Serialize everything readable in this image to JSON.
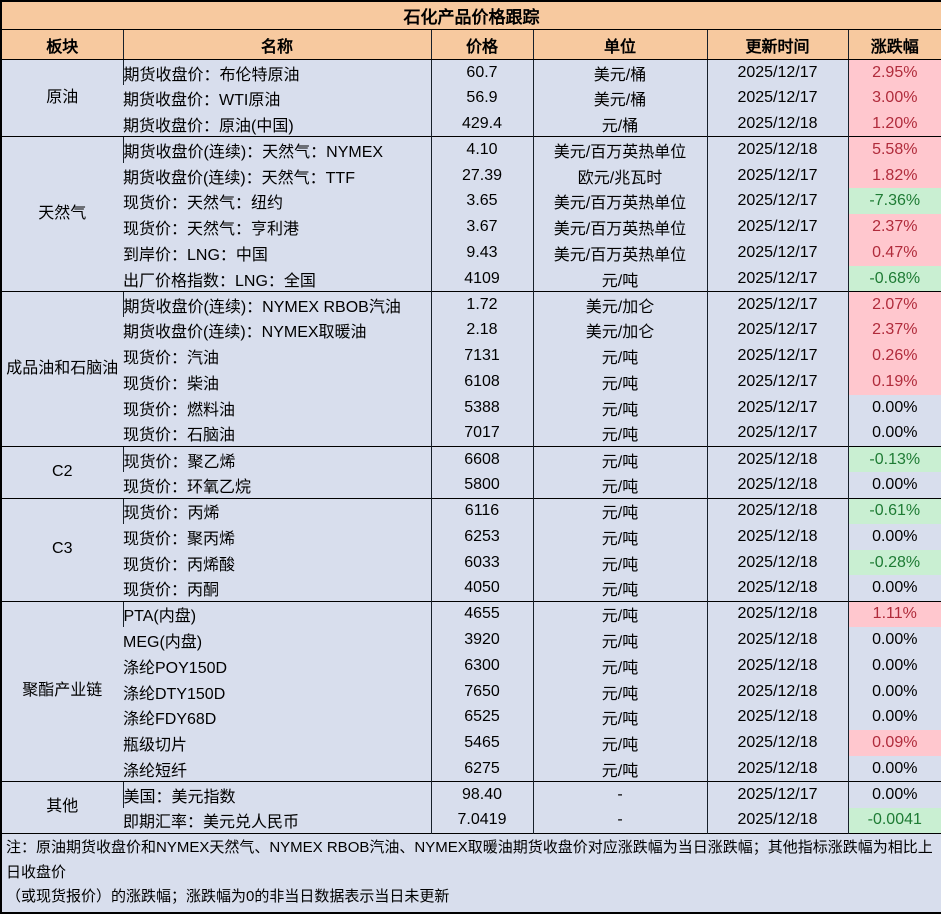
{
  "chart_data": {
    "type": "table",
    "title": "石化产品价格跟踪",
    "columns": [
      "板块",
      "名称",
      "价格",
      "单位",
      "更新时间",
      "涨跌幅"
    ],
    "sections": [
      {
        "sector": "原油",
        "rows": [
          {
            "name": "期货收盘价：布伦特原油",
            "price": "60.7",
            "unit": "美元/桶",
            "date": "2025/12/17",
            "change": "2.95%",
            "trend": "up"
          },
          {
            "name": "期货收盘价：WTI原油",
            "price": "56.9",
            "unit": "美元/桶",
            "date": "2025/12/17",
            "change": "3.00%",
            "trend": "up"
          },
          {
            "name": "期货收盘价：原油(中国)",
            "price": "429.4",
            "unit": "元/桶",
            "date": "2025/12/18",
            "change": "1.20%",
            "trend": "up"
          }
        ]
      },
      {
        "sector": "天然气",
        "rows": [
          {
            "name": "期货收盘价(连续)：天然气：NYMEX",
            "price": "4.10",
            "unit": "美元/百万英热单位",
            "date": "2025/12/18",
            "change": "5.58%",
            "trend": "up"
          },
          {
            "name": "期货收盘价(连续)：天然气：TTF",
            "price": "27.39",
            "unit": "欧元/兆瓦时",
            "date": "2025/12/17",
            "change": "1.82%",
            "trend": "up"
          },
          {
            "name": "现货价：天然气：纽约",
            "price": "3.65",
            "unit": "美元/百万英热单位",
            "date": "2025/12/17",
            "change": "-7.36%",
            "trend": "down"
          },
          {
            "name": "现货价：天然气：亨利港",
            "price": "3.67",
            "unit": "美元/百万英热单位",
            "date": "2025/12/17",
            "change": "2.37%",
            "trend": "up"
          },
          {
            "name": "到岸价：LNG：中国",
            "price": "9.43",
            "unit": "美元/百万英热单位",
            "date": "2025/12/17",
            "change": "0.47%",
            "trend": "up"
          },
          {
            "name": "出厂价格指数：LNG：全国",
            "price": "4109",
            "unit": "元/吨",
            "date": "2025/12/17",
            "change": "-0.68%",
            "trend": "down"
          }
        ]
      },
      {
        "sector": "成品油和石脑油",
        "rows": [
          {
            "name": "期货收盘价(连续)：NYMEX RBOB汽油",
            "price": "1.72",
            "unit": "美元/加仑",
            "date": "2025/12/17",
            "change": "2.07%",
            "trend": "up"
          },
          {
            "name": "期货收盘价(连续)：NYMEX取暖油",
            "price": "2.18",
            "unit": "美元/加仑",
            "date": "2025/12/17",
            "change": "2.37%",
            "trend": "up"
          },
          {
            "name": "现货价：汽油",
            "price": "7131",
            "unit": "元/吨",
            "date": "2025/12/17",
            "change": "0.26%",
            "trend": "up"
          },
          {
            "name": "现货价：柴油",
            "price": "6108",
            "unit": "元/吨",
            "date": "2025/12/17",
            "change": "0.19%",
            "trend": "up"
          },
          {
            "name": "现货价：燃料油",
            "price": "5388",
            "unit": "元/吨",
            "date": "2025/12/17",
            "change": "0.00%",
            "trend": "flat"
          },
          {
            "name": "现货价：石脑油",
            "price": "7017",
            "unit": "元/吨",
            "date": "2025/12/17",
            "change": "0.00%",
            "trend": "flat"
          }
        ]
      },
      {
        "sector": "C2",
        "rows": [
          {
            "name": "现货价：聚乙烯",
            "price": "6608",
            "unit": "元/吨",
            "date": "2025/12/18",
            "change": "-0.13%",
            "trend": "down"
          },
          {
            "name": "现货价：环氧乙烷",
            "price": "5800",
            "unit": "元/吨",
            "date": "2025/12/18",
            "change": "0.00%",
            "trend": "flat"
          }
        ]
      },
      {
        "sector": "C3",
        "rows": [
          {
            "name": "现货价：丙烯",
            "price": "6116",
            "unit": "元/吨",
            "date": "2025/12/18",
            "change": "-0.61%",
            "trend": "down"
          },
          {
            "name": "现货价：聚丙烯",
            "price": "6253",
            "unit": "元/吨",
            "date": "2025/12/18",
            "change": "0.00%",
            "trend": "flat"
          },
          {
            "name": "现货价：丙烯酸",
            "price": "6033",
            "unit": "元/吨",
            "date": "2025/12/18",
            "change": "-0.28%",
            "trend": "down"
          },
          {
            "name": "现货价：丙酮",
            "price": "4050",
            "unit": "元/吨",
            "date": "2025/12/18",
            "change": "0.00%",
            "trend": "flat"
          }
        ]
      },
      {
        "sector": "聚酯产业链",
        "rows": [
          {
            "name": "PTA(内盘)",
            "price": "4655",
            "unit": "元/吨",
            "date": "2025/12/18",
            "change": "1.11%",
            "trend": "up"
          },
          {
            "name": "MEG(内盘)",
            "price": "3920",
            "unit": "元/吨",
            "date": "2025/12/18",
            "change": "0.00%",
            "trend": "flat"
          },
          {
            "name": "涤纶POY150D",
            "price": "6300",
            "unit": "元/吨",
            "date": "2025/12/18",
            "change": "0.00%",
            "trend": "flat"
          },
          {
            "name": "涤纶DTY150D",
            "price": "7650",
            "unit": "元/吨",
            "date": "2025/12/18",
            "change": "0.00%",
            "trend": "flat"
          },
          {
            "name": "涤纶FDY68D",
            "price": "6525",
            "unit": "元/吨",
            "date": "2025/12/18",
            "change": "0.00%",
            "trend": "flat"
          },
          {
            "name": "瓶级切片",
            "price": "5465",
            "unit": "元/吨",
            "date": "2025/12/18",
            "change": "0.09%",
            "trend": "up"
          },
          {
            "name": "涤纶短纤",
            "price": "6275",
            "unit": "元/吨",
            "date": "2025/12/18",
            "change": "0.00%",
            "trend": "flat"
          }
        ]
      },
      {
        "sector": "其他",
        "rows": [
          {
            "name": "美国：美元指数",
            "price": "98.40",
            "unit": "-",
            "date": "2025/12/17",
            "change": "0.00%",
            "trend": "flat"
          },
          {
            "name": "即期汇率：美元兑人民币",
            "price": "7.0419",
            "unit": "-",
            "date": "2025/12/18",
            "change": "-0.0041",
            "trend": "down"
          }
        ]
      }
    ],
    "layout": {
      "grid": "section-bordered",
      "legend": "none"
    }
  },
  "footnote": {
    "line1": "注：原油期货收盘价和NYMEX天然气、NYMEX RBOB汽油、NYMEX取暖油期货收盘价对应涨跌幅为当日涨跌幅；其他指标涨跌幅为相比上日收盘价",
    "line2": "（或现货报价）的涨跌幅；涨跌幅为0的非当日数据表示当日未更新"
  },
  "colors": {
    "header_bg": "#F7C99F",
    "body_bg": "#D8DEED",
    "up_bg": "#FFC7CE",
    "up_text": "#B02B3B",
    "down_bg": "#C9EFD2",
    "down_text": "#1E7B34"
  }
}
